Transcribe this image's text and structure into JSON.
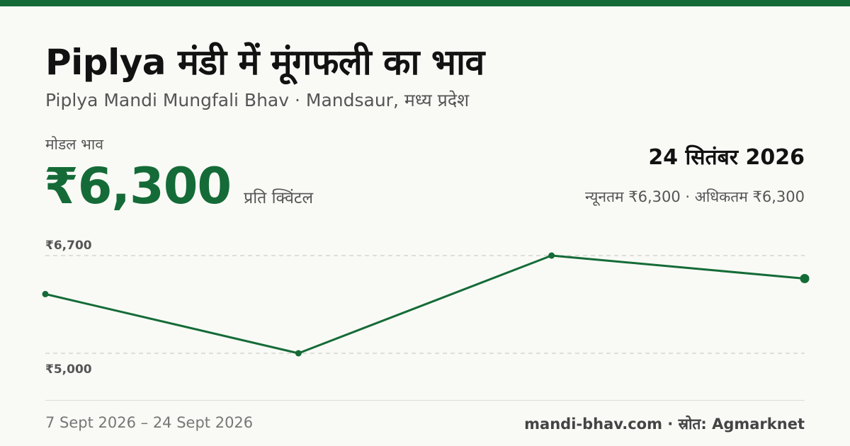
{
  "header": {
    "title": "Piplya मंडी में मूंगफली का भाव",
    "subtitle": "Piplya Mandi Mungfali Bhav · Mandsaur, मध्य प्रदेश"
  },
  "price": {
    "label": "मोडल भाव",
    "value": "₹6,300",
    "unit": "प्रति क्विंटल"
  },
  "summary": {
    "date": "24 सितंबर 2026",
    "range": "न्यूनतम ₹6,300 · अधिकतम ₹6,300"
  },
  "footer": {
    "date_range": "7 Sept 2026 – 24 Sept 2026",
    "source": "mandi-bhav.com · स्रोत: Agmarknet"
  },
  "colors": {
    "accent": "#156b37",
    "background": "#f9faf6"
  },
  "chart_data": {
    "type": "line",
    "x": [
      "7 Sept 2026",
      "",
      "",
      "24 Sept 2026"
    ],
    "values": [
      6030,
      5000,
      6700,
      6300
    ],
    "y_ticks": [
      {
        "value": 6700,
        "label": "₹6,700"
      },
      {
        "value": 5000,
        "label": "₹5,000"
      }
    ],
    "ylim": [
      5000,
      6700
    ],
    "grid": "dashed at ticks",
    "legend": "none"
  }
}
